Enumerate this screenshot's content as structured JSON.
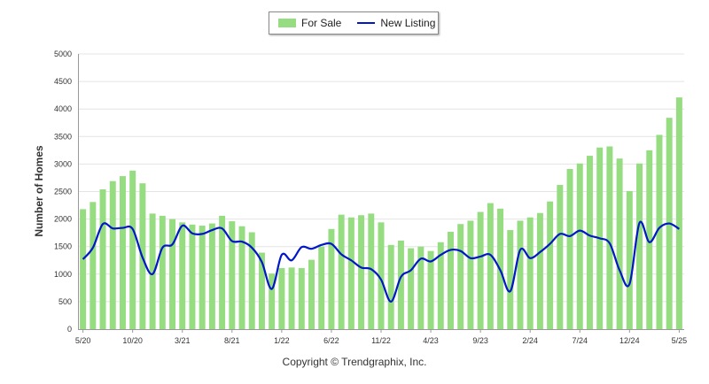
{
  "legend": {
    "for_sale_label": "For Sale",
    "new_listing_label": "New Listing"
  },
  "copyright": "Copyright © Trendgraphix, Inc.",
  "colors": {
    "for_sale": "#96dc80",
    "new_listing": "#0018c8",
    "grid": "#e4e4e4",
    "axis": "#999999"
  },
  "chart_data": {
    "type": "bar",
    "ylabel": "Number of Homes",
    "ylim": [
      0,
      5000
    ],
    "yticks": [
      0,
      500,
      1000,
      1500,
      2000,
      2500,
      3000,
      3500,
      4000,
      4500,
      5000
    ],
    "x_tick_labels": [
      {
        "index": 0,
        "label": "5/20"
      },
      {
        "index": 5,
        "label": "10/20"
      },
      {
        "index": 10,
        "label": "3/21"
      },
      {
        "index": 15,
        "label": "8/21"
      },
      {
        "index": 20,
        "label": "1/22"
      },
      {
        "index": 25,
        "label": "6/22"
      },
      {
        "index": 30,
        "label": "11/22"
      },
      {
        "index": 35,
        "label": "4/23"
      },
      {
        "index": 40,
        "label": "9/23"
      },
      {
        "index": 45,
        "label": "2/24"
      },
      {
        "index": 50,
        "label": "7/24"
      },
      {
        "index": 55,
        "label": "12/24"
      },
      {
        "index": 60,
        "label": "5/25"
      }
    ],
    "categories": [
      "5/20",
      "6/20",
      "7/20",
      "8/20",
      "9/20",
      "10/20",
      "11/20",
      "12/20",
      "1/21",
      "2/21",
      "3/21",
      "4/21",
      "5/21",
      "6/21",
      "7/21",
      "8/21",
      "9/21",
      "10/21",
      "11/21",
      "12/21",
      "1/22",
      "2/22",
      "3/22",
      "4/22",
      "5/22",
      "6/22",
      "7/22",
      "8/22",
      "9/22",
      "10/22",
      "11/22",
      "12/22",
      "1/23",
      "2/23",
      "3/23",
      "4/23",
      "5/23",
      "6/23",
      "7/23",
      "8/23",
      "9/23",
      "10/23",
      "11/23",
      "12/23",
      "1/24",
      "2/24",
      "3/24",
      "4/24",
      "5/24",
      "6/24",
      "7/24",
      "8/24",
      "9/24",
      "10/24",
      "11/24",
      "12/24",
      "1/25",
      "2/25",
      "3/25",
      "4/25",
      "5/25"
    ],
    "series": [
      {
        "name": "For Sale",
        "kind": "bar",
        "values": [
          2180,
          2310,
          2540,
          2690,
          2780,
          2880,
          2650,
          2100,
          2060,
          2000,
          1940,
          1900,
          1880,
          1920,
          2060,
          1960,
          1870,
          1760,
          1390,
          1010,
          1110,
          1120,
          1110,
          1260,
          1500,
          1820,
          2080,
          2030,
          2070,
          2100,
          1940,
          1530,
          1610,
          1470,
          1500,
          1420,
          1580,
          1770,
          1910,
          1970,
          2130,
          2290,
          2190,
          1800,
          1970,
          2030,
          2110,
          2320,
          2620,
          2910,
          3010,
          3150,
          3300,
          3320,
          3100,
          2510,
          3010,
          3250,
          3530,
          3840,
          4210
        ]
      },
      {
        "name": "New Listing",
        "kind": "line",
        "values": [
          1270,
          1480,
          1910,
          1830,
          1840,
          1820,
          1300,
          1000,
          1480,
          1540,
          1880,
          1740,
          1730,
          1800,
          1830,
          1600,
          1590,
          1480,
          1220,
          730,
          1350,
          1250,
          1490,
          1460,
          1530,
          1550,
          1360,
          1250,
          1120,
          1090,
          900,
          500,
          950,
          1070,
          1280,
          1230,
          1350,
          1440,
          1420,
          1290,
          1320,
          1350,
          1070,
          690,
          1440,
          1290,
          1400,
          1550,
          1730,
          1690,
          1790,
          1700,
          1650,
          1560,
          1070,
          820,
          1930,
          1580,
          1840,
          1920,
          1820
        ]
      }
    ]
  }
}
